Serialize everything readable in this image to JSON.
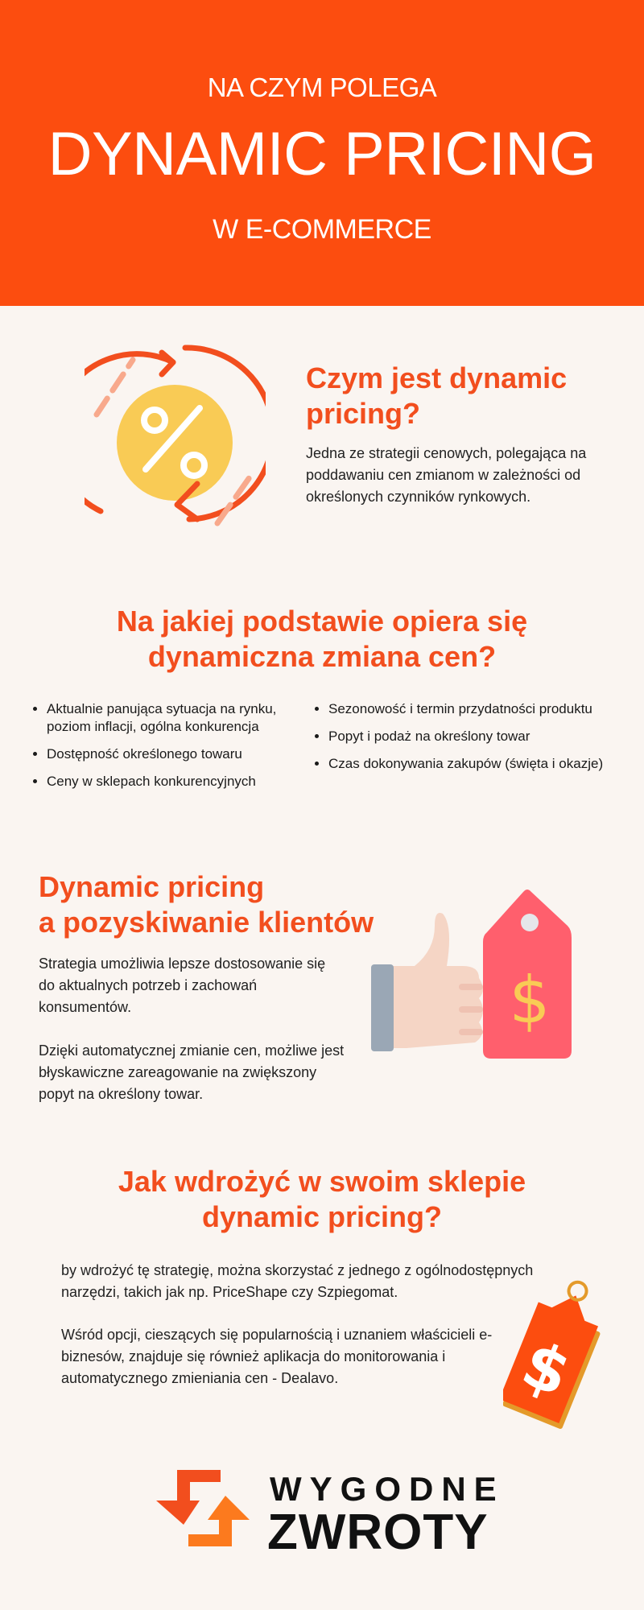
{
  "header": {
    "line1": "NA CZYM POLEGA",
    "line2": "DYNAMIC PRICING",
    "line3": "W E-COMMERCE"
  },
  "section1": {
    "title": "Czym jest dynamic pricing?",
    "text": "Jedna ze strategii cenowych, polegająca na poddawaniu cen zmianom w zależności od określonych czynników rynkowych.",
    "icon": "percent-refresh-icon"
  },
  "section2": {
    "title_line1": "Na jakiej podstawie opiera się",
    "title_line2": "dynamiczna zmiana cen?",
    "left": [
      "Aktualnie panująca sytuacja na rynku, poziom inflacji, ogólna konkurencja",
      "Dostępność określonego towaru",
      "Ceny w sklepach konkurencyjnych"
    ],
    "right": [
      "Sezonowość i termin przydatności produktu",
      "Popyt i podaż na określony towar",
      "Czas dokonywania zakupów (święta i okazje)"
    ]
  },
  "section3": {
    "title_line1": "Dynamic pricing",
    "title_line2": "a pozyskiwanie klientów",
    "p1": "Strategia umożliwia lepsze dostosowanie się do aktualnych potrzeb i zachowań konsumentów.",
    "p2": "Dzięki automatycznej zmianie cen, możliwe jest błyskawiczne zareagowanie na zwiększony popyt na określony towar.",
    "icon": "thumbs-up-price-tag-icon"
  },
  "section4": {
    "title_line1": "Jak wdrożyć w swoim sklepie",
    "title_line2": "dynamic pricing?",
    "p1": "by wdrożyć tę strategię, można skorzystać z jednego z ogólnodostępnych narzędzi, takich jak np. PriceShape czy Szpiegomat.",
    "p2": "Wśród opcji, cieszących się popularnością i uznaniem właścicieli e-biznesów, znajduje się również aplikacja do monitorowania i automatycznego zmieniania cen - Dealavo.",
    "icon": "dollar-tag-icon"
  },
  "logo": {
    "line1": "WYGODNE",
    "line2": "ZWROTY"
  },
  "colors": {
    "accent": "#fc4d0f",
    "title": "#f24e1e",
    "background": "#faf5f1",
    "yellow": "#f9cb55",
    "tag": "#ff5f6d"
  }
}
